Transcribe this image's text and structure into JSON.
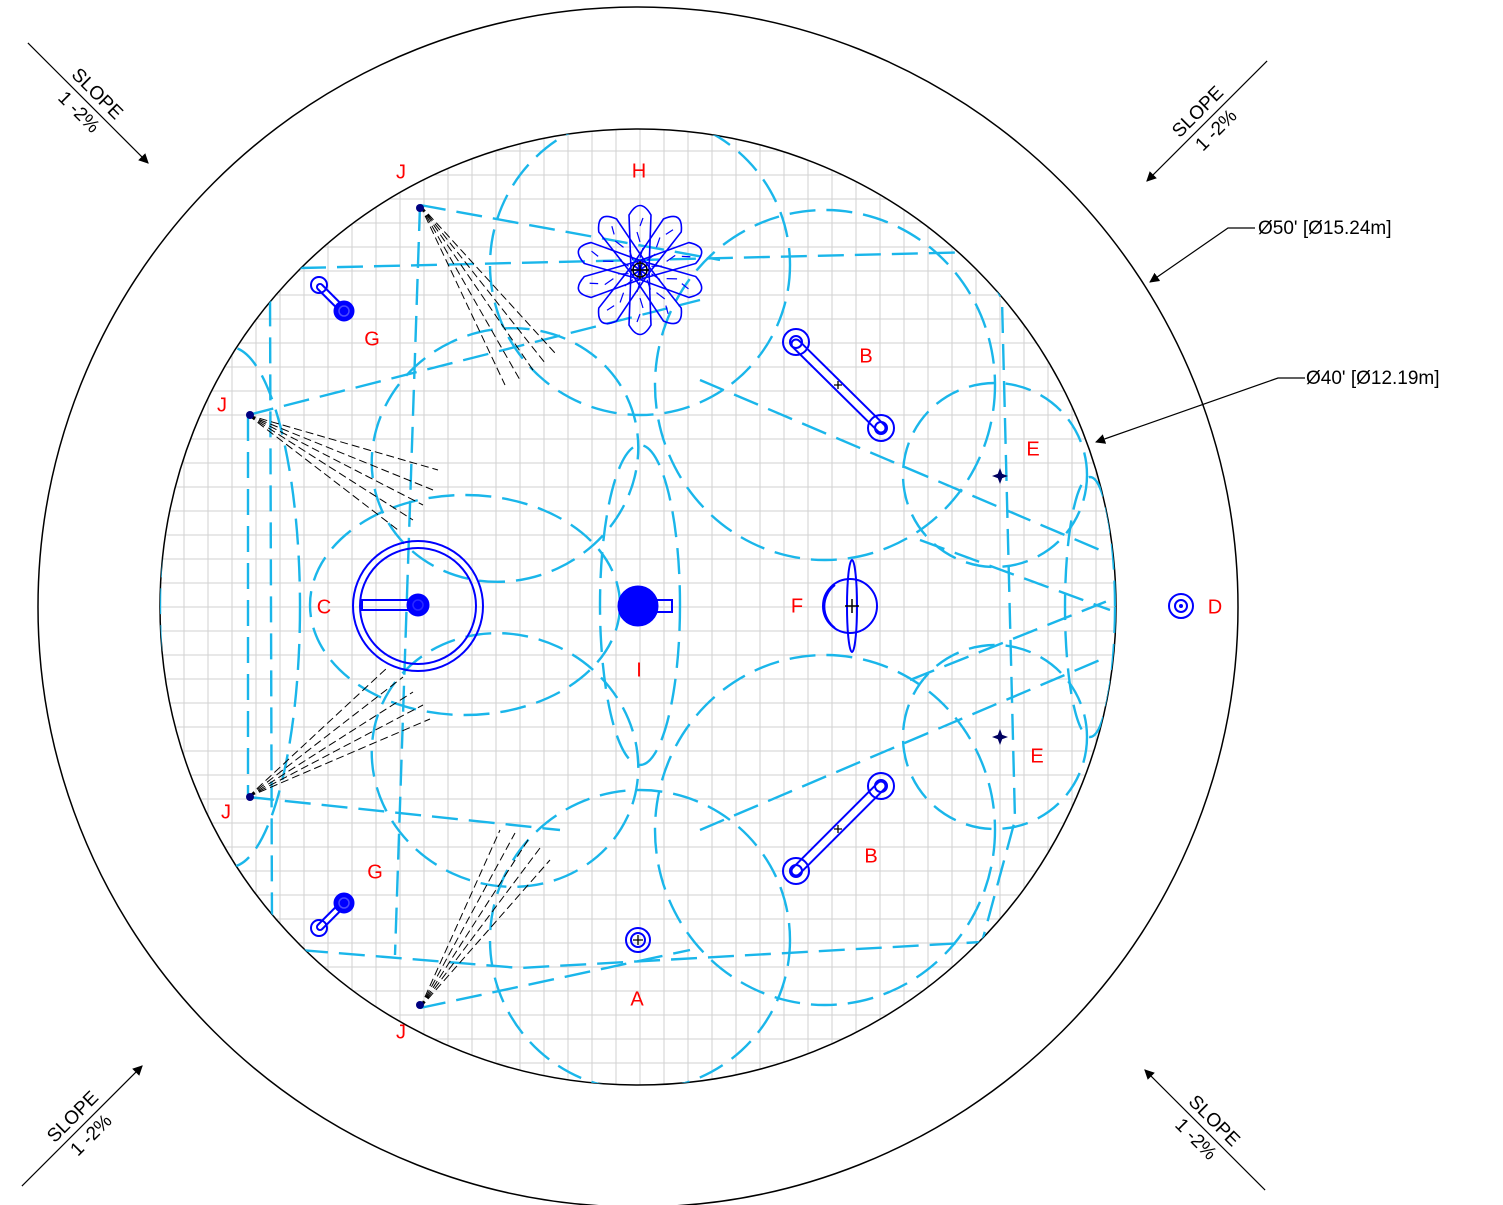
{
  "dimensions": {
    "outer": "Ø50' [Ø15.24m]",
    "inner": "Ø40' [Ø12.19m]"
  },
  "slope": {
    "word": "SLOPE",
    "grade": "1 -2%"
  },
  "labels": [
    {
      "id": "A",
      "text": "A"
    },
    {
      "id": "B1",
      "text": "B"
    },
    {
      "id": "B2",
      "text": "B"
    },
    {
      "id": "C",
      "text": "C"
    },
    {
      "id": "D",
      "text": "D"
    },
    {
      "id": "E1",
      "text": "E"
    },
    {
      "id": "E2",
      "text": "E"
    },
    {
      "id": "F",
      "text": "F"
    },
    {
      "id": "G1",
      "text": "G"
    },
    {
      "id": "G2",
      "text": "G"
    },
    {
      "id": "H",
      "text": "H"
    },
    {
      "id": "I",
      "text": "I"
    },
    {
      "id": "J1",
      "text": "J"
    },
    {
      "id": "J2",
      "text": "J"
    },
    {
      "id": "J3",
      "text": "J"
    },
    {
      "id": "J4",
      "text": "J"
    }
  ],
  "colors": {
    "spray_zone": "#1ab6ea",
    "equipment": "#0000ff",
    "label": "#ff0000",
    "grid": "#d2d2d2",
    "outline": "#000000"
  }
}
